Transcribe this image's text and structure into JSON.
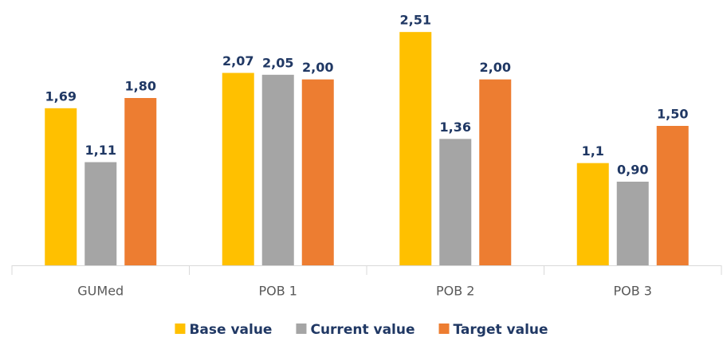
{
  "chart_data": {
    "type": "bar",
    "categories": [
      "GUMed",
      "POB 1",
      "POB 2",
      "POB 3"
    ],
    "series": [
      {
        "name": "Base value",
        "color": "#ffc000",
        "values": [
          1.69,
          2.07,
          2.51,
          1.1
        ],
        "value_labels": [
          "1,69",
          "2,07",
          "2,51",
          "1,1"
        ]
      },
      {
        "name": "Current value",
        "color": "#a5a5a5",
        "values": [
          1.11,
          2.05,
          1.36,
          0.9
        ],
        "value_labels": [
          "1,11",
          "2,05",
          "1,36",
          "0,90"
        ]
      },
      {
        "name": "Target value",
        "color": "#ed7d31",
        "values": [
          1.8,
          2.0,
          2.0,
          1.5
        ],
        "value_labels": [
          "1,80",
          "2,00",
          "2,00",
          "1,50"
        ]
      }
    ],
    "ylim": [
      0,
      2.7
    ],
    "legend": "bottom"
  }
}
